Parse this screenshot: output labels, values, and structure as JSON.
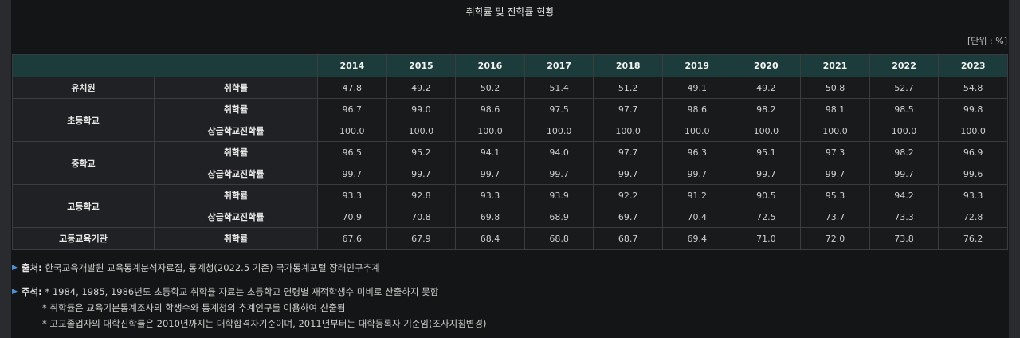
{
  "title": "취학률 및 진학률 현황",
  "unit": "[단위 : %]",
  "table": {
    "years": [
      "2014",
      "2015",
      "2016",
      "2017",
      "2018",
      "2019",
      "2020",
      "2021",
      "2022",
      "2023"
    ],
    "rows": [
      {
        "group": "유치원",
        "rowspan": 1,
        "metric": "취학률",
        "values": [
          "47.8",
          "49.2",
          "50.2",
          "51.4",
          "51.2",
          "49.1",
          "49.2",
          "50.8",
          "52.7",
          "54.8"
        ]
      },
      {
        "group": "초등학교",
        "rowspan": 2,
        "metric": "취학률",
        "values": [
          "96.7",
          "99.0",
          "98.6",
          "97.5",
          "97.7",
          "98.6",
          "98.2",
          "98.1",
          "98.5",
          "99.8"
        ]
      },
      {
        "group": "",
        "rowspan": 0,
        "metric": "상급학교진학률",
        "values": [
          "100.0",
          "100.0",
          "100.0",
          "100.0",
          "100.0",
          "100.0",
          "100.0",
          "100.0",
          "100.0",
          "100.0"
        ]
      },
      {
        "group": "중학교",
        "rowspan": 2,
        "metric": "취학률",
        "values": [
          "96.5",
          "95.2",
          "94.1",
          "94.0",
          "97.7",
          "96.3",
          "95.1",
          "97.3",
          "98.2",
          "96.9"
        ]
      },
      {
        "group": "",
        "rowspan": 0,
        "metric": "상급학교진학률",
        "values": [
          "99.7",
          "99.7",
          "99.7",
          "99.7",
          "99.7",
          "99.7",
          "99.7",
          "99.7",
          "99.7",
          "99.6"
        ]
      },
      {
        "group": "고등학교",
        "rowspan": 2,
        "metric": "취학률",
        "values": [
          "93.3",
          "92.8",
          "93.3",
          "93.9",
          "92.2",
          "91.2",
          "90.5",
          "95.3",
          "94.2",
          "93.3"
        ]
      },
      {
        "group": "",
        "rowspan": 0,
        "metric": "상급학교진학률",
        "values": [
          "70.9",
          "70.8",
          "69.8",
          "68.9",
          "69.7",
          "70.4",
          "72.5",
          "73.7",
          "73.3",
          "72.8"
        ]
      },
      {
        "group": "고등교육기관",
        "rowspan": 1,
        "metric": "취학률",
        "values": [
          "67.6",
          "67.9",
          "68.4",
          "68.8",
          "68.7",
          "69.4",
          "71.0",
          "72.0",
          "73.8",
          "76.2"
        ]
      }
    ]
  },
  "source": {
    "label": "출처:",
    "text": "한국교육개발원 교육통계분석자료집, 통계청(2022.5 기준) 국가통계포털 장래인구추계"
  },
  "notes": {
    "label": "주석:",
    "items": [
      "* 1984, 1985, 1986년도 초등학교 취학률 자료는 초등학교 연령별 재적학생수 미비로 산출하지 못함",
      "* 취학률은 교육기본통계조사의 학생수와 통계청의 추계인구를 이용하여 산출됨",
      "* 고교졸업자의 대학진학률은 2010년까지는 대학합격자기준이며, 2011년부터는 대학등록자 기준임(조사지침변경)"
    ]
  }
}
